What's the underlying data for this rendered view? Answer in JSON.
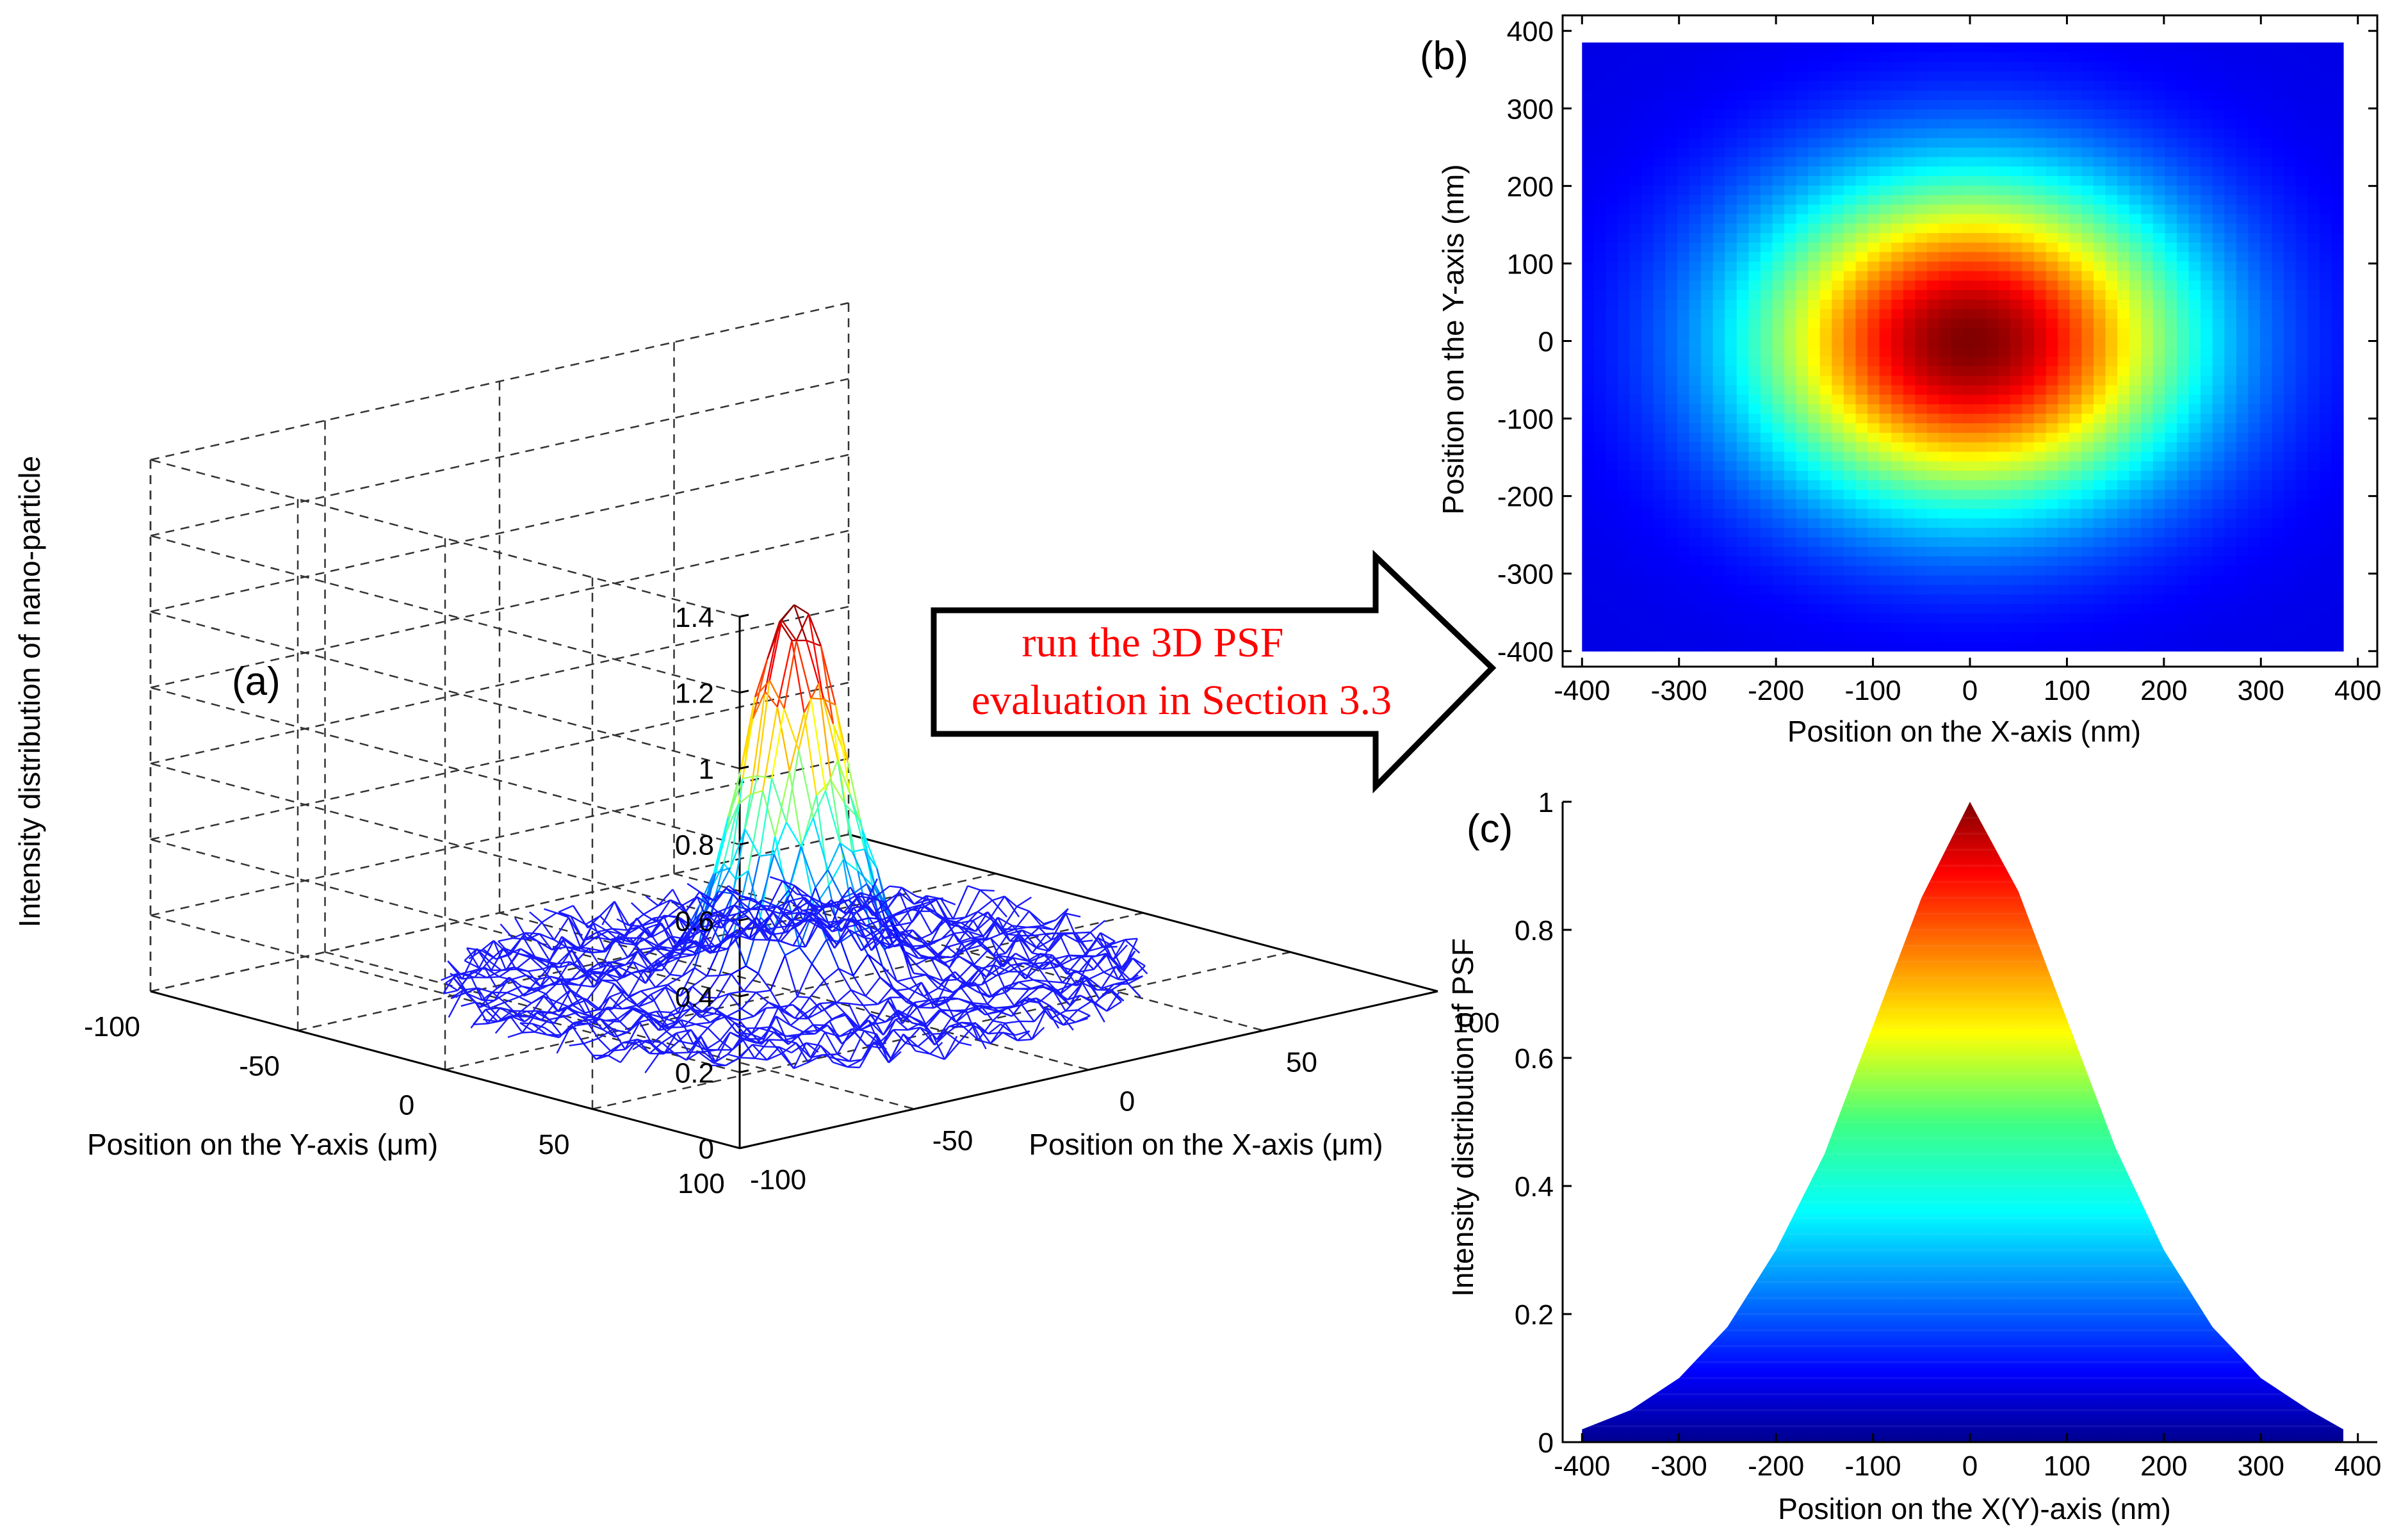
{
  "colors": {
    "jet_dark_red": "#800000",
    "jet_blue": "#0000ff",
    "arrow_text": "#ff0000",
    "mesh_base": "#1a1aff"
  },
  "arrow": {
    "line1": "run the 3D PSF",
    "line2": "evaluation in Section 3.3"
  },
  "chart_data": [
    {
      "id": "a",
      "panel_label": "(a)",
      "type": "surface-mesh-3d",
      "zlabel": "Intensity distribution of nano-particle",
      "ylabel": "Position on the Y-axis (μm)",
      "xlabel": "Position on the X-axis (μm)",
      "z_ticks": [
        "0",
        "0.2",
        "0.4",
        "0.6",
        "0.8",
        "1",
        "1.2",
        "1.4"
      ],
      "y_ticks": [
        "-100",
        "-50",
        "0",
        "50",
        "100"
      ],
      "x_ticks": [
        "-100",
        "-50",
        "0",
        "50",
        "100"
      ],
      "xlim": [
        -100,
        100
      ],
      "ylim": [
        -100,
        100
      ],
      "zlim": [
        0,
        1.4
      ],
      "peak": {
        "x": 0,
        "y": 0,
        "z": 1.0
      },
      "noise_floor_max": 0.08,
      "grid": true
    },
    {
      "id": "b",
      "panel_label": "(b)",
      "type": "heatmap",
      "xlabel": "Position on the X-axis (nm)",
      "ylabel": "Position on the Y-axis (nm)",
      "x_ticks": [
        "-400",
        "-300",
        "-200",
        "-100",
        "0",
        "100",
        "200",
        "300",
        "400"
      ],
      "y_ticks": [
        "400",
        "300",
        "200",
        "100",
        "0",
        "-100",
        "-200",
        "-300",
        "-400"
      ],
      "xlim": [
        -420,
        420
      ],
      "ylim": [
        -420,
        420
      ],
      "extent": [
        -400,
        385,
        -400,
        385
      ],
      "colormap": "jet",
      "peak": {
        "x": 0,
        "y": 0,
        "value": 1.0
      }
    },
    {
      "id": "c",
      "panel_label": "(c)",
      "type": "area",
      "xlabel": "Position on the X(Y)-axis (nm)",
      "ylabel": "Intensity distribution of PSF",
      "x_ticks": [
        "-400",
        "-300",
        "-200",
        "-100",
        "0",
        "100",
        "200",
        "300",
        "400"
      ],
      "y_ticks": [
        "0",
        "0.2",
        "0.4",
        "0.6",
        "0.8",
        "1"
      ],
      "xlim": [
        -420,
        420
      ],
      "ylim": [
        0,
        1
      ],
      "x": [
        -400,
        -350,
        -300,
        -250,
        -200,
        -150,
        -100,
        -50,
        0,
        50,
        100,
        150,
        200,
        250,
        300,
        350,
        385
      ],
      "y": [
        0.02,
        0.05,
        0.1,
        0.18,
        0.3,
        0.45,
        0.65,
        0.85,
        1.0,
        0.86,
        0.66,
        0.46,
        0.3,
        0.18,
        0.1,
        0.05,
        0.02
      ],
      "colormap": "jet"
    }
  ]
}
